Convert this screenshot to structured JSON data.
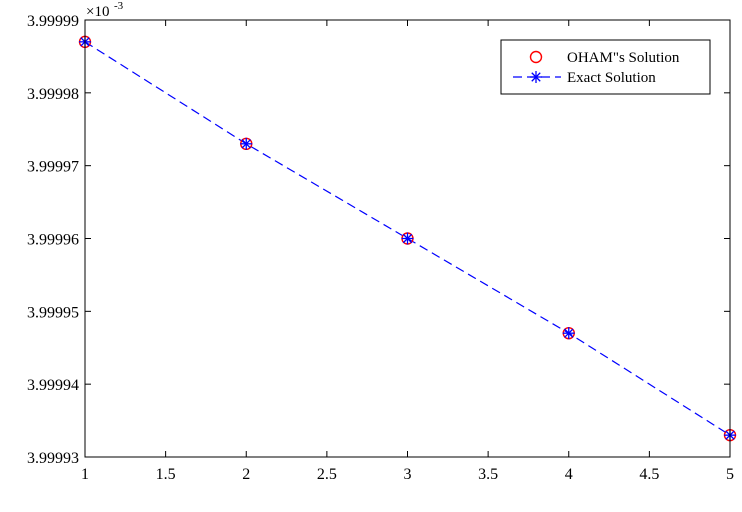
{
  "chart_data": {
    "type": "line",
    "title": "",
    "xlabel": "",
    "ylabel": "",
    "x": [
      1,
      2,
      3,
      4,
      5
    ],
    "xlim": [
      1,
      5
    ],
    "ylim": [
      3.99993,
      3.99999
    ],
    "y_exponent_label": "×10",
    "y_exponent_power": "-3",
    "grid": false,
    "legend_position": "top-right",
    "xticks": [
      1,
      1.5,
      2,
      2.5,
      3,
      3.5,
      4,
      4.5,
      5
    ],
    "xtick_labels": [
      "1",
      "1.5",
      "2",
      "2.5",
      "3",
      "3.5",
      "4",
      "4.5",
      "5"
    ],
    "yticks": [
      3.99993,
      3.99994,
      3.99995,
      3.99996,
      3.99997,
      3.99998,
      3.99999
    ],
    "ytick_labels": [
      "3.99993",
      "3.99994",
      "3.99995",
      "3.99996",
      "3.99997",
      "3.99998",
      "3.99999"
    ],
    "series": [
      {
        "name": "OHAM\"s Solution",
        "marker": "circle",
        "line": "none",
        "color": "#ff0000",
        "values": [
          3.999987,
          3.999973,
          3.99996,
          3.999947,
          3.999933
        ]
      },
      {
        "name": "Exact Solution",
        "marker": "asterisk",
        "line": "dashed",
        "color": "#0000ff",
        "values": [
          3.999987,
          3.999973,
          3.99996,
          3.999947,
          3.999933
        ]
      }
    ]
  }
}
